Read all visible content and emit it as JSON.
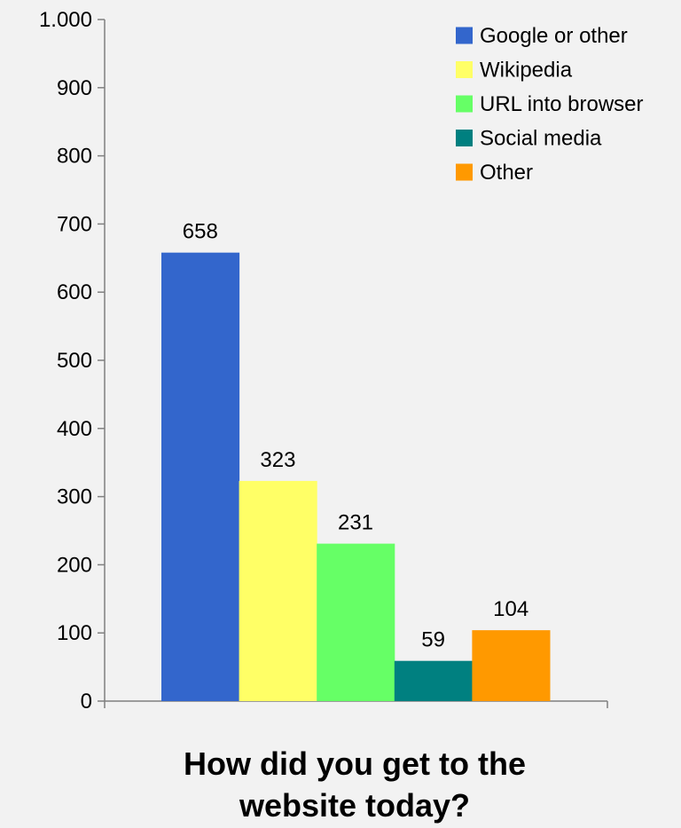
{
  "chart_data": {
    "type": "bar",
    "title": "How did you get to the website today?",
    "title_lines": [
      "How did you get to the",
      "website today?"
    ],
    "xlabel": "",
    "ylabel": "",
    "ylim": [
      0,
      1000
    ],
    "yticks": [
      0,
      100,
      200,
      300,
      400,
      500,
      600,
      700,
      800,
      900,
      1000
    ],
    "ytick_labels": [
      "0",
      "100",
      "200",
      "300",
      "400",
      "500",
      "600",
      "700",
      "800",
      "900",
      "1.000"
    ],
    "grid": false,
    "legend_position": "top-right",
    "categories": [
      "Google or other",
      "Wikipedia",
      "URL into browser",
      "Social media",
      "Other"
    ],
    "values": [
      658,
      323,
      231,
      59,
      104
    ],
    "data_labels": [
      "658",
      "323",
      "231",
      "59",
      "104"
    ],
    "colors": [
      "#3366cc",
      "#ffff66",
      "#66ff66",
      "#008080",
      "#ff9900"
    ]
  }
}
